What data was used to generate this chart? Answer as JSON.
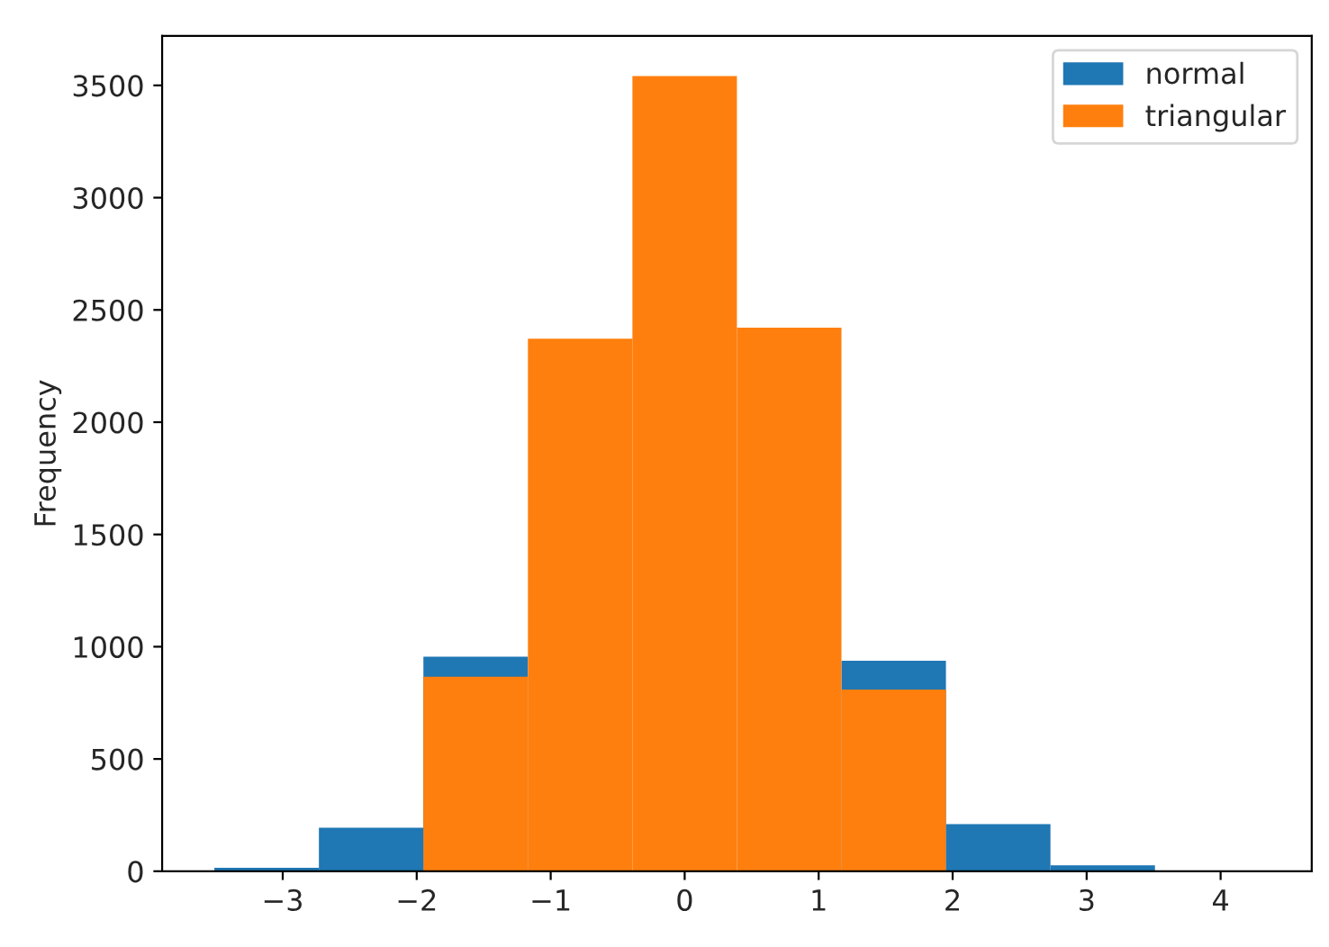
{
  "chart_data": {
    "type": "histogram",
    "ylabel": "Frequency",
    "bins": [
      -3.51,
      -2.73,
      -1.95,
      -1.17,
      -0.39,
      0.39,
      1.17,
      1.95,
      2.73,
      3.51,
      4.29
    ],
    "series": [
      {
        "name": "normal",
        "color": "#1f77b4",
        "values": [
          15,
          194,
          956,
          null,
          null,
          null,
          938,
          210,
          26,
          0
        ]
      },
      {
        "name": "triangular",
        "color": "#ff7f0e",
        "values": [
          0,
          0,
          866,
          2372,
          3541,
          2421,
          809,
          0,
          0,
          0
        ]
      }
    ],
    "xlim": [
      -3.9,
      4.68
    ],
    "xticks": [
      {
        "value": -3,
        "label": "−3"
      },
      {
        "value": -2,
        "label": "−2"
      },
      {
        "value": -1,
        "label": "−1"
      },
      0,
      1,
      2,
      3,
      4
    ],
    "ylim": [
      0,
      3720
    ],
    "yticks": [
      0,
      500,
      1000,
      1500,
      2000,
      2500,
      3000,
      3500
    ],
    "legend": "top right",
    "grid": false
  }
}
